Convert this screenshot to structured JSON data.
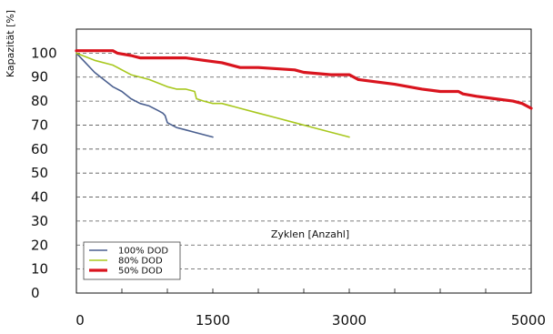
{
  "chart_data": {
    "type": "line",
    "ylabel": "Kapazität [%]",
    "annotation": "Zyklen [Anzahl]",
    "xlim": [
      0,
      5000
    ],
    "ylim": [
      0,
      110
    ],
    "x_ticks": [
      0,
      500,
      1000,
      1500,
      2000,
      2500,
      3000,
      3500,
      4000,
      4500,
      5000
    ],
    "x_tick_labels": [
      {
        "value": 0,
        "label": "0"
      },
      {
        "value": 1500,
        "label": "1500"
      },
      {
        "value": 3000,
        "label": "3000"
      },
      {
        "value": 5000,
        "label": "5000"
      }
    ],
    "y_ticks": [
      {
        "value": 0,
        "label": "0"
      },
      {
        "value": 10,
        "label": "10"
      },
      {
        "value": 20,
        "label": "20"
      },
      {
        "value": 30,
        "label": "30"
      },
      {
        "value": 40,
        "label": "40"
      },
      {
        "value": 50,
        "label": "50"
      },
      {
        "value": 60,
        "label": "60"
      },
      {
        "value": 70,
        "label": "70"
      },
      {
        "value": 80,
        "label": "80"
      },
      {
        "value": 90,
        "label": "90"
      },
      {
        "value": 100,
        "label": "100"
      }
    ],
    "grid": "horizontal dashed",
    "legend_position": "bottom-left",
    "series": [
      {
        "name": "100% DOD",
        "color": "#4a5f8f",
        "points": [
          [
            0,
            100
          ],
          [
            100,
            96
          ],
          [
            200,
            92
          ],
          [
            300,
            89
          ],
          [
            400,
            86
          ],
          [
            500,
            84
          ],
          [
            600,
            81
          ],
          [
            700,
            79
          ],
          [
            800,
            78
          ],
          [
            900,
            76
          ],
          [
            950,
            75
          ],
          [
            975,
            74
          ],
          [
            1000,
            71
          ],
          [
            1100,
            69
          ],
          [
            1200,
            68
          ],
          [
            1300,
            67
          ],
          [
            1400,
            66
          ],
          [
            1500,
            65
          ]
        ]
      },
      {
        "name": "80% DOD",
        "color": "#a8c81e",
        "points": [
          [
            0,
            100
          ],
          [
            200,
            97
          ],
          [
            400,
            95
          ],
          [
            600,
            91
          ],
          [
            800,
            89
          ],
          [
            1000,
            86
          ],
          [
            1100,
            85
          ],
          [
            1200,
            85
          ],
          [
            1300,
            84
          ],
          [
            1320,
            81
          ],
          [
            1400,
            80
          ],
          [
            1500,
            79
          ],
          [
            1600,
            79
          ],
          [
            1800,
            77
          ],
          [
            2000,
            75
          ],
          [
            2200,
            73
          ],
          [
            2400,
            71
          ],
          [
            2600,
            69
          ],
          [
            2800,
            67
          ],
          [
            3000,
            65
          ]
        ]
      },
      {
        "name": "50% DOD",
        "color": "#d9141e",
        "points": [
          [
            0,
            101
          ],
          [
            400,
            101
          ],
          [
            450,
            100
          ],
          [
            600,
            99
          ],
          [
            700,
            98
          ],
          [
            1000,
            98
          ],
          [
            1200,
            98
          ],
          [
            1400,
            97
          ],
          [
            1600,
            96
          ],
          [
            1800,
            94
          ],
          [
            2000,
            94
          ],
          [
            2400,
            93
          ],
          [
            2500,
            92
          ],
          [
            2800,
            91
          ],
          [
            3000,
            91
          ],
          [
            3100,
            89
          ],
          [
            3500,
            87
          ],
          [
            3800,
            85
          ],
          [
            4000,
            84
          ],
          [
            4200,
            84
          ],
          [
            4250,
            83
          ],
          [
            4400,
            82
          ],
          [
            4600,
            81
          ],
          [
            4800,
            80
          ],
          [
            4900,
            79
          ],
          [
            5000,
            77
          ]
        ]
      }
    ]
  }
}
